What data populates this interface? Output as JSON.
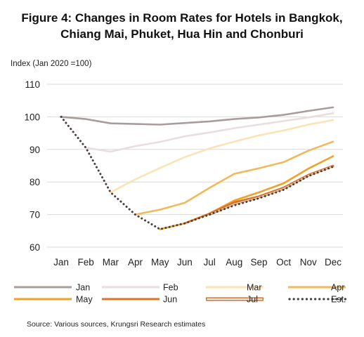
{
  "figure": {
    "title_line1": "Figure 4: Changes in Room Rates for Hotels in Bangkok,",
    "title_line2": "Chiang Mai, Phuket, Hua Hin and Chonburi",
    "source": "Source: Various sources, Krungsri Research estimates"
  },
  "chart_data": {
    "type": "line",
    "ylabel": "Index (Jan 2020 =100)",
    "xlabel": "",
    "categories": [
      "Jan",
      "Feb",
      "Mar",
      "Apr",
      "May",
      "Jun",
      "Jul",
      "Aug",
      "Sep",
      "Oct",
      "Nov",
      "Dec"
    ],
    "ylim": [
      60,
      110
    ],
    "yticks": [
      60,
      70,
      80,
      90,
      100,
      110
    ],
    "grid": true,
    "legend_position": "bottom",
    "series": [
      {
        "name": "Jan",
        "color": "#a99d9b",
        "style": "solid",
        "values": [
          100,
          99.3,
          98,
          97.8,
          97.6,
          98.1,
          98.6,
          99.3,
          99.8,
          100.6,
          101.8,
          102.9
        ]
      },
      {
        "name": "Feb",
        "color": "#e9dedd",
        "style": "solid",
        "values": [
          null,
          90.5,
          89.3,
          91,
          92.3,
          94,
          95.2,
          96.5,
          97.6,
          98.7,
          99.8,
          101.1
        ]
      },
      {
        "name": "Mar",
        "color": "#fbe3b5",
        "style": "solid",
        "values": [
          null,
          null,
          76.8,
          80.8,
          84.3,
          87.6,
          90.3,
          92.4,
          94.3,
          95.8,
          97.6,
          99
        ]
      },
      {
        "name": "Apr",
        "color": "#f2b95c",
        "style": "solid",
        "values": [
          null,
          null,
          null,
          70,
          71.5,
          73.6,
          78.2,
          82.5,
          84.2,
          86.1,
          89.6,
          92.4
        ]
      },
      {
        "name": "May",
        "color": "#f0a12a",
        "style": "solid",
        "values": [
          null,
          null,
          null,
          null,
          65.5,
          67.3,
          70.3,
          74.3,
          76.8,
          79.6,
          84.1,
          87.9
        ]
      },
      {
        "name": "Jun",
        "color": "#e07320",
        "style": "solid",
        "values": [
          null,
          null,
          null,
          null,
          null,
          67.3,
          70.3,
          73.8,
          75.6,
          78.3,
          82.2,
          85
        ]
      },
      {
        "name": "Jul",
        "color": "#d86e2a",
        "style": "hollow",
        "values": [
          null,
          null,
          null,
          null,
          null,
          null,
          70,
          73.3,
          75.3,
          78,
          82,
          84.9
        ]
      },
      {
        "name": "Est.",
        "color": "#4a3f3d",
        "style": "dotted",
        "values": [
          100,
          90.5,
          76.8,
          70,
          65.5,
          67.3,
          70,
          72.8,
          75,
          77.6,
          81.8,
          84.7
        ]
      }
    ]
  }
}
